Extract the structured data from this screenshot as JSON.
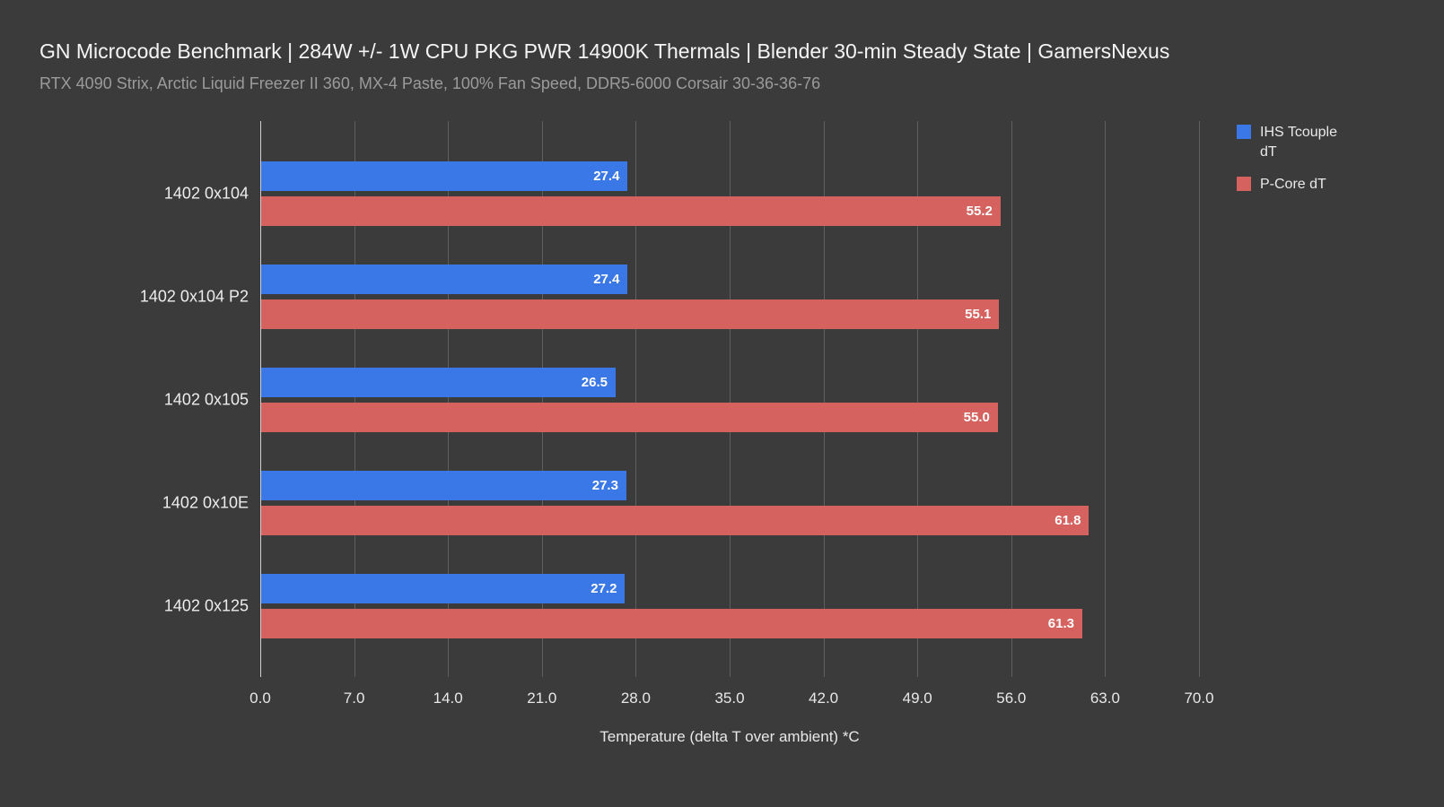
{
  "header": {
    "title": "GN Microcode Benchmark | 284W +/- 1W CPU PKG PWR 14900K Thermals | Blender 30-min Steady State | GamersNexus",
    "subtitle": "RTX 4090 Strix, Arctic Liquid Freezer II 360, MX-4 Paste, 100% Fan Speed, DDR5-6000 Corsair 30-36-36-76"
  },
  "chart_data": {
    "type": "bar",
    "orientation": "horizontal",
    "categories": [
      "1402 0x104",
      "1402 0x104 P2",
      "1402 0x105",
      "1402 0x10E",
      "1402 0x125"
    ],
    "series": [
      {
        "name": "IHS Tcouple dT",
        "color": "#3b78e7",
        "values": [
          27.4,
          27.4,
          26.5,
          27.3,
          27.2
        ]
      },
      {
        "name": "P-Core dT",
        "color": "#d6625f",
        "values": [
          55.2,
          55.1,
          55.0,
          61.8,
          61.3
        ]
      }
    ],
    "xlabel": "Temperature (delta T over ambient) *C",
    "xlim": [
      0,
      70
    ],
    "xticks": [
      "0.0",
      "7.0",
      "14.0",
      "21.0",
      "28.0",
      "35.0",
      "42.0",
      "49.0",
      "56.0",
      "63.0",
      "70.0"
    ],
    "grid": true,
    "legend_position": "top-right",
    "value_labels": true,
    "colors": {
      "background": "#3b3b3b",
      "gridline": "#5f5f5f",
      "axis_line": "#cfcfcf",
      "title_text": "#f4f4f4",
      "subtitle_text": "#9b9b9b",
      "label_text": "#e8e8e8",
      "value_text": "#ffffff"
    }
  }
}
